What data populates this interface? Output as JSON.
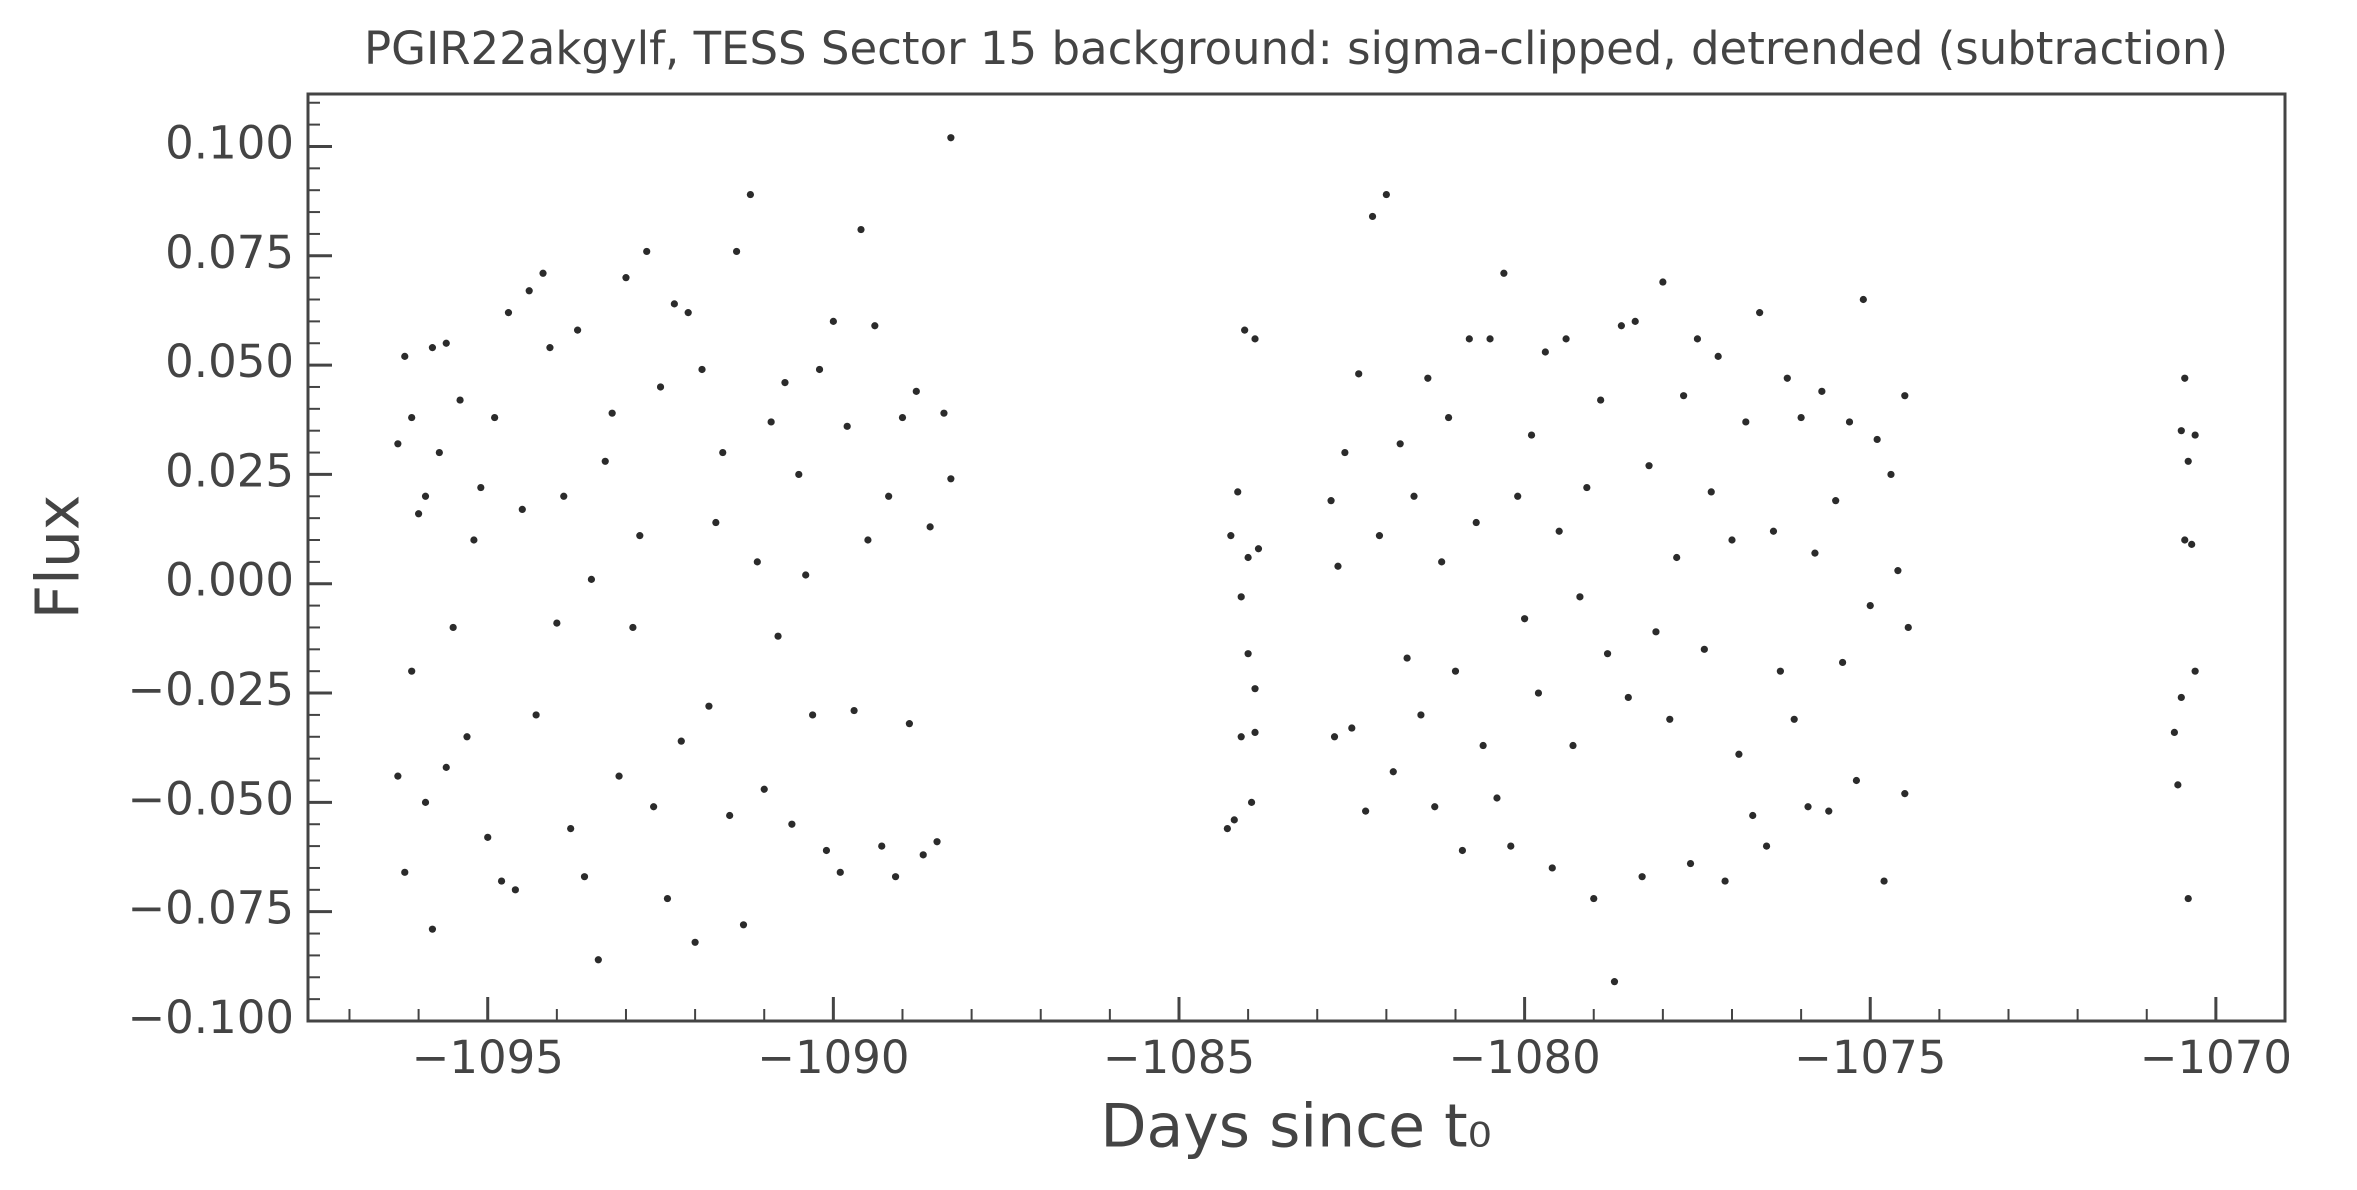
{
  "chart_data": {
    "type": "scatter",
    "title": "PGIR22akgylf, TESS Sector 15 background: sigma-clipped, detrended (subtraction)",
    "xlabel": "Days since t₀",
    "ylabel": "Flux",
    "color": "#2b2b2b",
    "xlim": [
      -1097.6,
      -1069.0
    ],
    "ylim": [
      -0.1,
      0.112
    ],
    "xticks": [
      {
        "value": -1095,
        "label": "−1095"
      },
      {
        "value": -1090,
        "label": "−1090"
      },
      {
        "value": -1085,
        "label": "−1085"
      },
      {
        "value": -1080,
        "label": "−1080"
      },
      {
        "value": -1075,
        "label": "−1075"
      },
      {
        "value": -1070,
        "label": "−1070"
      }
    ],
    "yticks": [
      {
        "value": -0.1,
        "label": "−0.100"
      },
      {
        "value": -0.075,
        "label": "−0.075"
      },
      {
        "value": -0.05,
        "label": "−0.050"
      },
      {
        "value": -0.025,
        "label": "−0.025"
      },
      {
        "value": 0,
        "label": "0.000"
      },
      {
        "value": 0.025,
        "label": "0.025"
      },
      {
        "value": 0.05,
        "label": "0.050"
      },
      {
        "value": 0.075,
        "label": "0.075"
      },
      {
        "value": 0.1,
        "label": "0.100"
      }
    ],
    "x": [
      -1096.3,
      -1096.3,
      -1096.2,
      -1096.2,
      -1096.1,
      -1096.1,
      -1096.0,
      -1095.9,
      -1095.9,
      -1095.8,
      -1095.8,
      -1095.7,
      -1095.6,
      -1095.6,
      -1095.5,
      -1095.4,
      -1095.3,
      -1095.2,
      -1095.1,
      -1095.0,
      -1094.9,
      -1094.8,
      -1094.7,
      -1094.6,
      -1094.5,
      -1094.4,
      -1094.3,
      -1094.2,
      -1094.1,
      -1094.0,
      -1093.9,
      -1093.8,
      -1093.7,
      -1093.6,
      -1093.5,
      -1093.4,
      -1093.3,
      -1093.2,
      -1093.1,
      -1093.0,
      -1092.9,
      -1092.8,
      -1092.7,
      -1092.6,
      -1092.5,
      -1092.4,
      -1092.3,
      -1092.2,
      -1092.1,
      -1092.0,
      -1091.9,
      -1091.8,
      -1091.7,
      -1091.6,
      -1091.5,
      -1091.4,
      -1091.3,
      -1091.2,
      -1091.1,
      -1091.0,
      -1090.9,
      -1090.8,
      -1090.7,
      -1090.6,
      -1090.5,
      -1090.4,
      -1090.3,
      -1090.2,
      -1090.1,
      -1090.0,
      -1089.9,
      -1089.8,
      -1089.7,
      -1089.6,
      -1089.5,
      -1089.4,
      -1089.3,
      -1089.2,
      -1089.1,
      -1089.0,
      -1088.9,
      -1088.8,
      -1088.7,
      -1088.6,
      -1088.5,
      -1088.4,
      -1088.3,
      -1088.3,
      -1084.3,
      -1084.25,
      -1084.2,
      -1084.15,
      -1084.1,
      -1084.1,
      -1084.05,
      -1084.0,
      -1084.0,
      -1083.95,
      -1083.9,
      -1083.9,
      -1083.85,
      -1083.9,
      -1082.8,
      -1082.75,
      -1082.7,
      -1082.6,
      -1082.5,
      -1082.4,
      -1082.3,
      -1082.2,
      -1082.1,
      -1082.0,
      -1081.9,
      -1081.8,
      -1081.7,
      -1081.6,
      -1081.5,
      -1081.4,
      -1081.3,
      -1081.2,
      -1081.1,
      -1081.0,
      -1080.9,
      -1080.8,
      -1080.7,
      -1080.6,
      -1080.5,
      -1080.4,
      -1080.3,
      -1080.2,
      -1080.1,
      -1080.0,
      -1079.9,
      -1079.8,
      -1079.7,
      -1079.6,
      -1079.5,
      -1079.4,
      -1079.3,
      -1079.2,
      -1079.1,
      -1079.0,
      -1078.9,
      -1078.8,
      -1078.7,
      -1078.6,
      -1078.5,
      -1078.4,
      -1078.3,
      -1078.2,
      -1078.1,
      -1078.0,
      -1077.9,
      -1077.8,
      -1077.7,
      -1077.6,
      -1077.5,
      -1077.4,
      -1077.3,
      -1077.2,
      -1077.1,
      -1077.0,
      -1076.9,
      -1076.8,
      -1076.7,
      -1076.6,
      -1076.5,
      -1076.4,
      -1076.3,
      -1076.2,
      -1076.1,
      -1076.0,
      -1075.9,
      -1075.8,
      -1075.7,
      -1075.6,
      -1075.5,
      -1075.4,
      -1075.3,
      -1075.2,
      -1075.1,
      -1075.0,
      -1074.9,
      -1074.8,
      -1074.7,
      -1074.6,
      -1074.5,
      -1074.5,
      -1074.45,
      -1070.6,
      -1070.55,
      -1070.5,
      -1070.5,
      -1070.45,
      -1070.45,
      -1070.4,
      -1070.4,
      -1070.35,
      -1070.3,
      -1070.3
    ],
    "values": [
      0.032,
      -0.044,
      0.052,
      -0.066,
      0.038,
      -0.02,
      0.016,
      -0.05,
      0.02,
      -0.079,
      0.054,
      0.03,
      -0.042,
      0.055,
      -0.01,
      0.042,
      -0.035,
      0.01,
      0.022,
      -0.058,
      0.038,
      -0.068,
      0.062,
      -0.07,
      0.017,
      0.067,
      -0.03,
      0.071,
      0.054,
      -0.009,
      0.02,
      -0.056,
      0.058,
      -0.067,
      0.001,
      -0.086,
      0.028,
      0.039,
      -0.044,
      0.07,
      -0.01,
      0.011,
      0.076,
      -0.051,
      0.045,
      -0.072,
      0.064,
      -0.036,
      0.062,
      -0.082,
      0.049,
      -0.028,
      0.014,
      0.03,
      -0.053,
      0.076,
      -0.078,
      0.089,
      0.005,
      -0.047,
      0.037,
      -0.012,
      0.046,
      -0.055,
      0.025,
      0.002,
      -0.03,
      0.049,
      -0.061,
      0.06,
      -0.066,
      0.036,
      -0.029,
      0.081,
      0.01,
      0.059,
      -0.06,
      0.02,
      -0.067,
      0.038,
      -0.032,
      0.044,
      -0.062,
      0.013,
      -0.059,
      0.039,
      0.102,
      0.024,
      -0.056,
      0.011,
      -0.054,
      0.021,
      -0.003,
      -0.035,
      0.058,
      -0.016,
      0.006,
      -0.05,
      0.056,
      -0.034,
      0.008,
      -0.024,
      0.019,
      -0.035,
      0.004,
      0.03,
      -0.033,
      0.048,
      -0.052,
      0.084,
      0.011,
      0.089,
      -0.043,
      0.032,
      -0.017,
      0.02,
      -0.03,
      0.047,
      -0.051,
      0.005,
      0.038,
      -0.02,
      -0.061,
      0.056,
      0.014,
      -0.037,
      0.056,
      -0.049,
      0.071,
      -0.06,
      0.02,
      -0.008,
      0.034,
      -0.025,
      0.053,
      -0.065,
      0.012,
      0.056,
      -0.037,
      -0.003,
      0.022,
      -0.072,
      0.042,
      -0.016,
      -0.091,
      0.059,
      -0.026,
      0.06,
      -0.067,
      0.027,
      -0.011,
      0.069,
      -0.031,
      0.006,
      0.043,
      -0.064,
      0.056,
      -0.015,
      0.021,
      0.052,
      -0.068,
      0.01,
      -0.039,
      0.037,
      -0.053,
      0.062,
      -0.06,
      0.012,
      -0.02,
      0.047,
      -0.031,
      0.038,
      -0.051,
      0.007,
      0.044,
      -0.052,
      0.019,
      -0.018,
      0.037,
      -0.045,
      0.065,
      -0.005,
      0.033,
      -0.068,
      0.025,
      0.003,
      -0.048,
      0.043,
      -0.01,
      -0.034,
      -0.046,
      0.035,
      -0.026,
      0.047,
      0.01,
      0.028,
      -0.072,
      0.009,
      0.034,
      -0.02
    ]
  }
}
